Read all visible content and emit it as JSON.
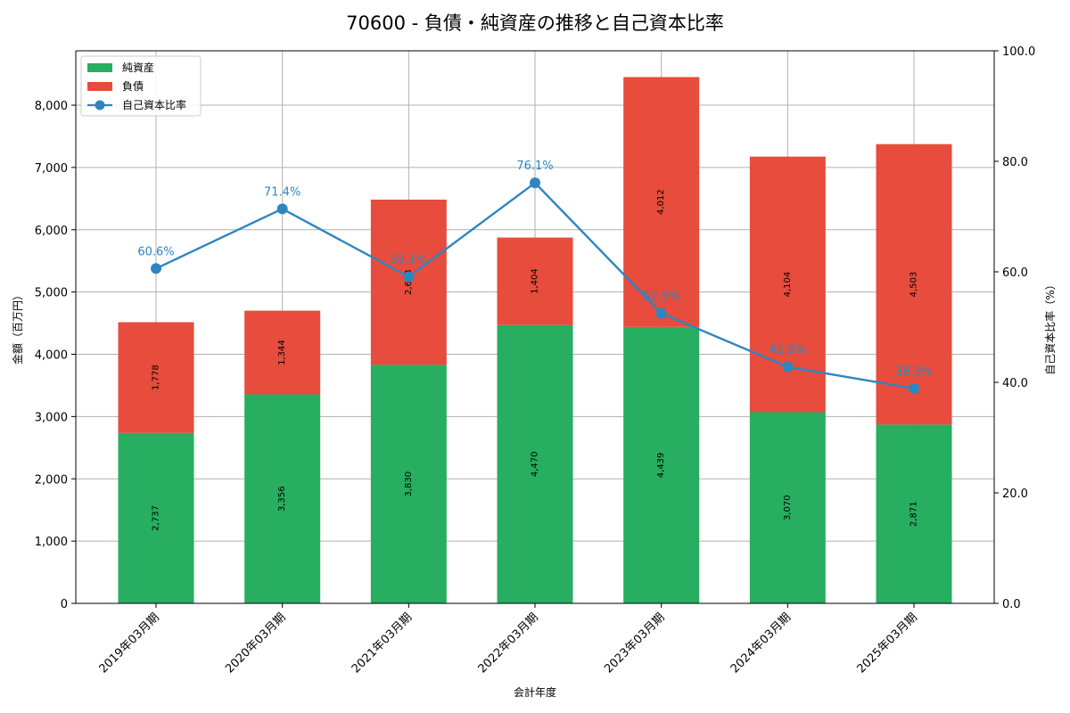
{
  "chart_data": {
    "type": "bar",
    "subtype": "stacked_bar_with_line_secondary_axis",
    "title": "70600 - 負債・純資産の推移と自己資本比率",
    "xlabel": "会計年度",
    "ylabel": "金額（百万円）",
    "y2label": "自己資本比率（%）",
    "categories": [
      "2019年03月期",
      "2020年03月期",
      "2021年03月期",
      "2022年03月期",
      "2023年03月期",
      "2024年03月期",
      "2025年03月期"
    ],
    "series": [
      {
        "name": "純資産",
        "type": "bar",
        "stack": "total",
        "axis": "left",
        "color": "#27ae60",
        "values": [
          2737,
          3356,
          3830,
          4470,
          4439,
          3070,
          2871
        ],
        "labels": [
          "2,737",
          "3,356",
          "3,830",
          "4,470",
          "4,439",
          "3,070",
          "2,871"
        ]
      },
      {
        "name": "負債",
        "type": "bar",
        "stack": "total",
        "axis": "left",
        "color": "#e74c3c",
        "values": [
          1778,
          1344,
          2653,
          1404,
          4012,
          4104,
          4503
        ],
        "labels": [
          "1,778",
          "1,344",
          "2,653",
          "1,404",
          "4,012",
          "4,104",
          "4,503"
        ]
      },
      {
        "name": "自己資本比率",
        "type": "line",
        "axis": "right",
        "color": "#2e86c1",
        "values": [
          60.6,
          71.4,
          59.1,
          76.1,
          52.5,
          42.8,
          38.9
        ],
        "labels": [
          "60.6%",
          "71.4%",
          "59.1%",
          "76.1%",
          "52.5%",
          "42.8%",
          "38.9%"
        ]
      }
    ],
    "ylim": [
      0,
      8870
    ],
    "y2lim": [
      0,
      100
    ],
    "yticks": [
      0,
      1000,
      2000,
      3000,
      4000,
      5000,
      6000,
      7000,
      8000
    ],
    "ytick_labels": [
      "0",
      "1,000",
      "2,000",
      "3,000",
      "4,000",
      "5,000",
      "6,000",
      "7,000",
      "8,000"
    ],
    "y2ticks": [
      0,
      20,
      40,
      60,
      80,
      100
    ],
    "y2tick_labels": [
      "0.0",
      "20.0",
      "40.0",
      "60.0",
      "80.0",
      "100.0"
    ],
    "grid": true,
    "legend_position": "upper left"
  },
  "legend": {
    "items": [
      "純資産",
      "負債",
      "自己資本比率"
    ]
  }
}
